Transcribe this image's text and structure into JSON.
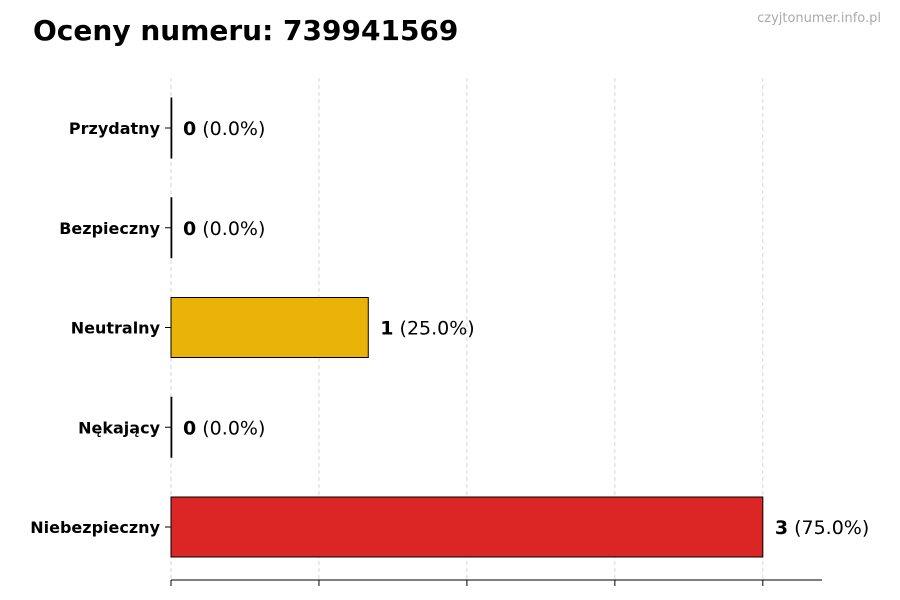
{
  "title": "Oceny numeru: 739941569",
  "watermark": "czyjtonumer.info.pl",
  "chart_data": {
    "type": "bar",
    "orientation": "horizontal",
    "title": "Oceny numeru: 739941569",
    "xlabel": "",
    "ylabel": "",
    "categories": [
      "Przydatny",
      "Bezpieczny",
      "Neutralny",
      "Nękający",
      "Niebezpieczny"
    ],
    "values": [
      0,
      0,
      1,
      0,
      3
    ],
    "percent_labels": [
      "(0.0%)",
      "(0.0%)",
      "(25.0%)",
      "(0.0%)",
      "(75.0%)"
    ],
    "colors": [
      "#22c55e",
      "#3b82f6",
      "#e9b308",
      "#f97316",
      "#dc2626"
    ],
    "xlim": [
      0,
      3.3
    ],
    "xticks": [
      0,
      0.75,
      1.5,
      2.25,
      3
    ],
    "xtick_labels_shown": false,
    "grid": "vertical dashed",
    "legend": "none"
  }
}
